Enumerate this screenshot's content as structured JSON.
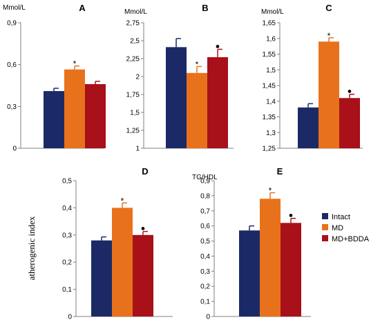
{
  "chart_data": [
    {
      "panel": "A",
      "type": "bar",
      "ylabel": "Mmol/L",
      "ylim": [
        0,
        0.9
      ],
      "yticks": [
        "0",
        "0,3",
        "0,6",
        "0,9"
      ],
      "categories": [
        "Intact",
        "MD",
        "MD+BDDA"
      ],
      "values": [
        0.41,
        0.565,
        0.46
      ],
      "errors": [
        0.02,
        0.025,
        0.02
      ],
      "markers": [
        "",
        "*",
        ""
      ]
    },
    {
      "panel": "B",
      "type": "bar",
      "ylabel": "Mmol/L",
      "ylim": [
        1,
        2.75
      ],
      "yticks": [
        "1",
        "1,25",
        "1,5",
        "1,75",
        "2",
        "2,25",
        "2,5",
        "2,75"
      ],
      "categories": [
        "Intact",
        "MD",
        "MD+BDDA"
      ],
      "values": [
        2.41,
        2.05,
        2.27
      ],
      "errors": [
        0.12,
        0.09,
        0.11
      ],
      "markers": [
        "",
        "*",
        "●"
      ]
    },
    {
      "panel": "C",
      "type": "bar",
      "ylabel": "Mmol/L",
      "ylim": [
        1.25,
        1.65
      ],
      "yticks": [
        "1,25",
        "1,3",
        "1,35",
        "1,4",
        "1,45",
        "1,5",
        "1,55",
        "1,6",
        "1,65"
      ],
      "categories": [
        "Intact",
        "MD",
        "MD+BDDA"
      ],
      "values": [
        1.38,
        1.59,
        1.41
      ],
      "errors": [
        0.012,
        0.012,
        0.012
      ],
      "markers": [
        "",
        "*",
        "●"
      ]
    },
    {
      "panel": "D",
      "type": "bar",
      "ylabel": "atherogenic  index",
      "ylim": [
        0,
        0.5
      ],
      "yticks": [
        "0",
        "0,1",
        "0,2",
        "0,3",
        "0,4",
        "0,5"
      ],
      "categories": [
        "Intact",
        "MD",
        "MD+BDDA"
      ],
      "values": [
        0.28,
        0.4,
        0.3
      ],
      "errors": [
        0.013,
        0.018,
        0.013
      ],
      "markers": [
        "",
        "*",
        "●"
      ]
    },
    {
      "panel": "E",
      "type": "bar",
      "ylabel": "TG/HDL",
      "ylim": [
        0,
        0.9
      ],
      "yticks": [
        "0",
        "0,1",
        "0,2",
        "0,3",
        "0,4",
        "0,5",
        "0,6",
        "0,7",
        "0,8",
        "0,9"
      ],
      "categories": [
        "Intact",
        "MD",
        "MD+BDDA"
      ],
      "values": [
        0.57,
        0.78,
        0.62
      ],
      "errors": [
        0.03,
        0.04,
        0.03
      ],
      "markers": [
        "",
        "*",
        "●"
      ]
    }
  ],
  "legend": {
    "position": "right",
    "items": [
      {
        "label": "Intact",
        "color": "#1b2a66"
      },
      {
        "label": "MD",
        "color": "#e8721c"
      },
      {
        "label": "MD+BDDA",
        "color": "#a8101a"
      }
    ]
  },
  "colors": {
    "Intact": "#1b2a66",
    "MD": "#e8721c",
    "MD+BDDA": "#a8101a"
  }
}
